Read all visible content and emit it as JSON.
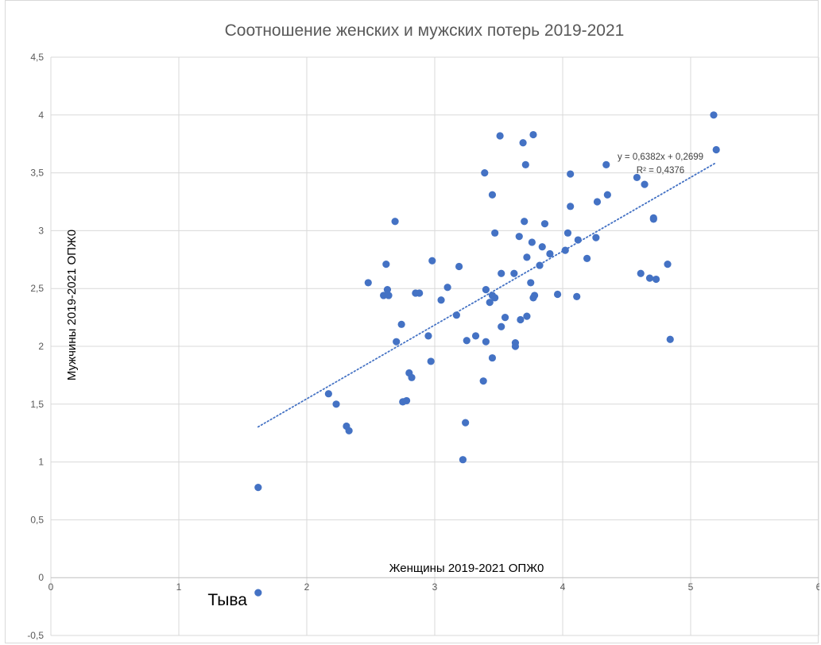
{
  "chart_data": {
    "type": "scatter",
    "title": "Соотношение женских и мужских потерь 2019-2021",
    "xlabel": "Женщины 2019-2021 ОПЖ0",
    "ylabel": "Мужчины 2019-2021 ОПЖ0",
    "xlim": [
      0,
      6
    ],
    "ylim": [
      -0.5,
      4.5
    ],
    "x_ticks": [
      0,
      1,
      2,
      3,
      4,
      5,
      6
    ],
    "x_tick_labels": [
      "0",
      "1",
      "2",
      "3",
      "4",
      "5",
      "6"
    ],
    "y_ticks": [
      -0.5,
      0,
      0.5,
      1,
      1.5,
      2,
      2.5,
      3,
      3.5,
      4,
      4.5
    ],
    "y_tick_labels": [
      "-0,5",
      "0",
      "0,5",
      "1",
      "1,5",
      "2",
      "2,5",
      "3",
      "3,5",
      "4",
      "4,5"
    ],
    "grid": true,
    "legend": "none",
    "colors": {
      "points": "#4472c4",
      "trendline": "#4472c4",
      "grid": "#d9d9d9"
    },
    "trendline": {
      "type": "linear",
      "slope": 0.6382,
      "intercept": 0.2699,
      "x_range": [
        1.62,
        5.2
      ],
      "equation": "y = 0,6382x + 0,2699",
      "r_squared": "R² = 0,4376"
    },
    "annotations": [
      {
        "text": "Тыва",
        "x": 1.62,
        "y": -0.13
      }
    ],
    "points": [
      [
        1.62,
        0.78
      ],
      [
        1.62,
        -0.13
      ],
      [
        2.17,
        1.59
      ],
      [
        2.23,
        1.5
      ],
      [
        2.31,
        1.31
      ],
      [
        2.33,
        1.27
      ],
      [
        2.48,
        2.55
      ],
      [
        2.6,
        2.44
      ],
      [
        2.62,
        2.71
      ],
      [
        2.63,
        2.49
      ],
      [
        2.64,
        2.44
      ],
      [
        2.69,
        3.08
      ],
      [
        2.7,
        2.04
      ],
      [
        2.74,
        2.19
      ],
      [
        2.75,
        1.52
      ],
      [
        2.78,
        1.53
      ],
      [
        2.8,
        1.77
      ],
      [
        2.82,
        1.73
      ],
      [
        2.85,
        2.46
      ],
      [
        2.88,
        2.46
      ],
      [
        2.95,
        2.09
      ],
      [
        2.97,
        1.87
      ],
      [
        2.98,
        2.74
      ],
      [
        3.05,
        2.4
      ],
      [
        3.1,
        2.51
      ],
      [
        3.17,
        2.27
      ],
      [
        3.19,
        2.69
      ],
      [
        3.22,
        1.02
      ],
      [
        3.24,
        1.34
      ],
      [
        3.25,
        2.05
      ],
      [
        3.32,
        2.09
      ],
      [
        3.38,
        1.7
      ],
      [
        3.39,
        3.5
      ],
      [
        3.4,
        2.49
      ],
      [
        3.4,
        2.04
      ],
      [
        3.43,
        2.38
      ],
      [
        3.45,
        2.44
      ],
      [
        3.45,
        3.31
      ],
      [
        3.45,
        1.9
      ],
      [
        3.47,
        2.98
      ],
      [
        3.47,
        2.42
      ],
      [
        3.51,
        3.82
      ],
      [
        3.52,
        2.63
      ],
      [
        3.52,
        2.17
      ],
      [
        3.55,
        2.25
      ],
      [
        3.62,
        2.63
      ],
      [
        3.63,
        2.03
      ],
      [
        3.63,
        2.0
      ],
      [
        3.66,
        2.95
      ],
      [
        3.67,
        2.23
      ],
      [
        3.69,
        3.76
      ],
      [
        3.7,
        3.08
      ],
      [
        3.71,
        3.57
      ],
      [
        3.72,
        2.77
      ],
      [
        3.72,
        2.26
      ],
      [
        3.75,
        2.55
      ],
      [
        3.76,
        2.9
      ],
      [
        3.77,
        3.83
      ],
      [
        3.77,
        2.42
      ],
      [
        3.78,
        2.44
      ],
      [
        3.82,
        2.7
      ],
      [
        3.84,
        2.86
      ],
      [
        3.86,
        3.06
      ],
      [
        3.9,
        2.8
      ],
      [
        3.96,
        2.45
      ],
      [
        4.02,
        2.83
      ],
      [
        4.04,
        2.98
      ],
      [
        4.06,
        3.21
      ],
      [
        4.06,
        3.49
      ],
      [
        4.11,
        2.43
      ],
      [
        4.12,
        2.92
      ],
      [
        4.19,
        2.76
      ],
      [
        4.26,
        2.94
      ],
      [
        4.27,
        3.25
      ],
      [
        4.34,
        3.57
      ],
      [
        4.35,
        3.31
      ],
      [
        4.58,
        3.46
      ],
      [
        4.61,
        2.63
      ],
      [
        4.64,
        3.4
      ],
      [
        4.68,
        2.59
      ],
      [
        4.71,
        3.1
      ],
      [
        4.71,
        3.11
      ],
      [
        4.73,
        2.58
      ],
      [
        4.82,
        2.71
      ],
      [
        4.84,
        2.06
      ],
      [
        5.18,
        4.0
      ],
      [
        5.2,
        3.7
      ]
    ]
  }
}
